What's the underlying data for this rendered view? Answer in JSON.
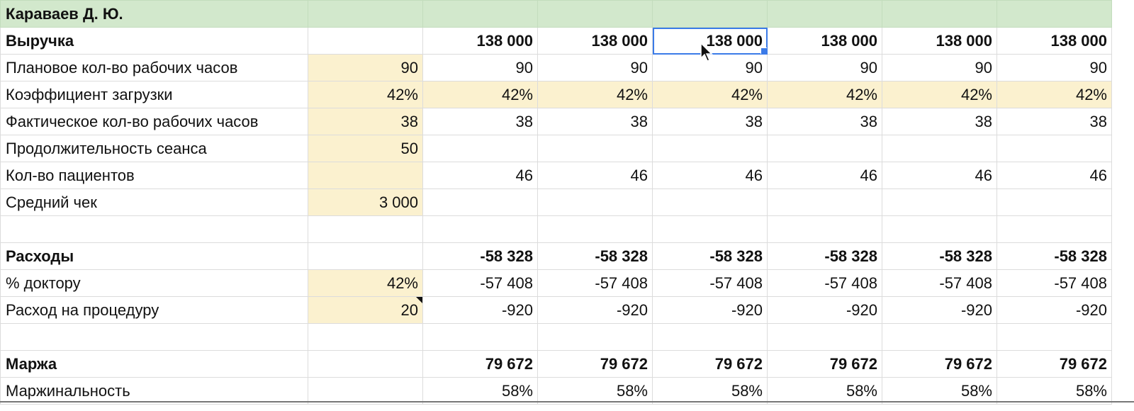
{
  "sheet": {
    "title": "Караваев Д. Ю.",
    "rows": [
      {
        "label": "Выручка",
        "input": "",
        "values": [
          "138 000",
          "138 000",
          "138 000",
          "138 000",
          "138 000",
          "138 000"
        ],
        "bold": true,
        "highlight": false
      },
      {
        "label": "Плановое кол-во рабочих часов",
        "input": "90",
        "values": [
          "90",
          "90",
          "90",
          "90",
          "90",
          "90"
        ],
        "bold": false,
        "highlight": false
      },
      {
        "label": "Коэффициент загрузки",
        "input": "42%",
        "values": [
          "42%",
          "42%",
          "42%",
          "42%",
          "42%",
          "42%"
        ],
        "bold": false,
        "highlight": true
      },
      {
        "label": "Фактическое кол-во рабочих часов",
        "input": "38",
        "values": [
          "38",
          "38",
          "38",
          "38",
          "38",
          "38"
        ],
        "bold": false,
        "highlight": false
      },
      {
        "label": "Продолжительность сеанса",
        "input": "50",
        "values": [
          "",
          "",
          "",
          "",
          "",
          ""
        ],
        "bold": false,
        "highlight": false
      },
      {
        "label": "Кол-во пациентов",
        "input": "",
        "values": [
          "46",
          "46",
          "46",
          "46",
          "46",
          "46"
        ],
        "bold": false,
        "highlight": false
      },
      {
        "label": "Средний чек",
        "input": "3 000",
        "values": [
          "",
          "",
          "",
          "",
          "",
          ""
        ],
        "bold": false,
        "highlight": false
      },
      {
        "label": "",
        "input": "",
        "values": [
          "",
          "",
          "",
          "",
          "",
          ""
        ],
        "bold": false,
        "highlight": false
      },
      {
        "label": "Расходы",
        "input": "",
        "values": [
          "-58 328",
          "-58 328",
          "-58 328",
          "-58 328",
          "-58 328",
          "-58 328"
        ],
        "bold": true,
        "highlight": false
      },
      {
        "label": "% доктору",
        "input": "42%",
        "values": [
          "-57 408",
          "-57 408",
          "-57 408",
          "-57 408",
          "-57 408",
          "-57 408"
        ],
        "bold": false,
        "highlight": false
      },
      {
        "label": "Расход на процедуру",
        "input": "20",
        "values": [
          "-920",
          "-920",
          "-920",
          "-920",
          "-920",
          "-920"
        ],
        "bold": false,
        "highlight": false
      },
      {
        "label": "",
        "input": "",
        "values": [
          "",
          "",
          "",
          "",
          "",
          ""
        ],
        "bold": false,
        "highlight": false
      },
      {
        "label": "Маржа",
        "input": "",
        "values": [
          "79 672",
          "79 672",
          "79 672",
          "79 672",
          "79 672",
          "79 672"
        ],
        "bold": true,
        "highlight": false
      },
      {
        "label": "Маржинальность",
        "input": "",
        "values": [
          "58%",
          "58%",
          "58%",
          "58%",
          "58%",
          "58%"
        ],
        "bold": false,
        "highlight": false
      }
    ],
    "input_rows": [
      1,
      2,
      3,
      4,
      5,
      6,
      9,
      10
    ],
    "selected_cell": {
      "row": 0,
      "col": 2
    },
    "note_row": 10,
    "colors": {
      "header": "#d2e8cc",
      "input": "#fbf1cf",
      "selection": "#3b7be8"
    }
  }
}
